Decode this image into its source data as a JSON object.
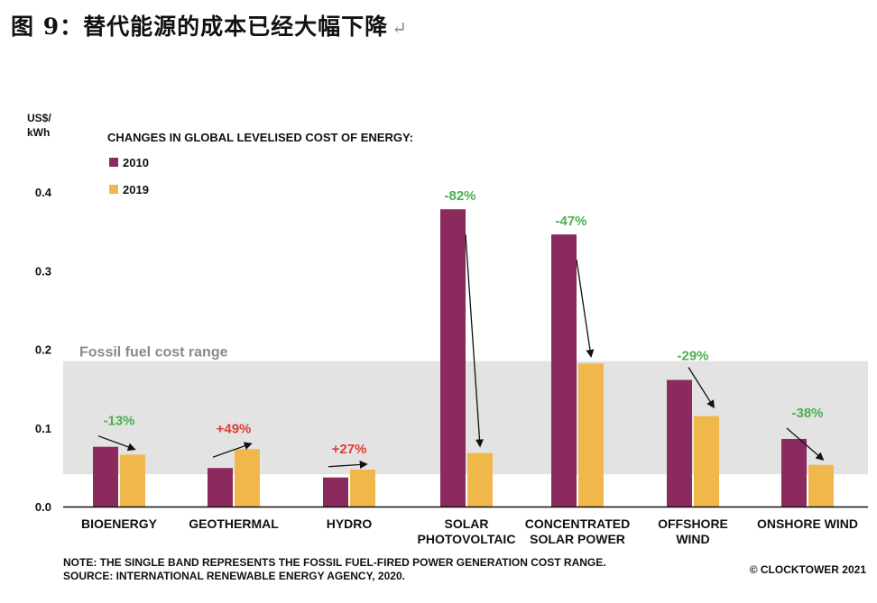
{
  "figure_title": "图 9：替代能源的成本已经大幅下降",
  "return_mark": "↵",
  "chart_data": {
    "type": "bar",
    "title": "CHANGES IN GLOBAL LEVELISED COST OF ENERGY:",
    "ylabel": "US$/ kWh",
    "ylabel_lines": [
      "US$/",
      "kWh"
    ],
    "ylim": [
      0,
      0.4
    ],
    "yticks": [
      "0.0",
      "0.1",
      "0.2",
      "0.3",
      "0.4"
    ],
    "categories": [
      [
        "BIOENERGY"
      ],
      [
        "GEOTHERMAL"
      ],
      [
        "HYDRO"
      ],
      [
        "SOLAR",
        "PHOTOVOLTAIC"
      ],
      [
        "CONCENTRATED",
        "SOLAR POWER"
      ],
      [
        "OFFSHORE",
        "WIND"
      ],
      [
        "ONSHORE WIND"
      ]
    ],
    "series": [
      {
        "name": "2010",
        "color": "#8b2a5c",
        "values": [
          0.076,
          0.049,
          0.037,
          0.378,
          0.346,
          0.161,
          0.086
        ]
      },
      {
        "name": "2019",
        "color": "#f0b84a",
        "values": [
          0.066,
          0.073,
          0.047,
          0.068,
          0.182,
          0.115,
          0.053
        ]
      }
    ],
    "changes": [
      "-13%",
      "+49%",
      "+27%",
      "-82%",
      "-47%",
      "-29%",
      "-38%"
    ],
    "change_colors": {
      "decrease": "#4caf50",
      "increase": "#e03c31"
    },
    "band": {
      "label": "Fossil fuel cost range",
      "from": 0.041,
      "to": 0.185,
      "color": "#e3e3e3"
    },
    "legend_position": "top-left"
  },
  "notes": [
    "NOTE: THE SINGLE BAND REPRESENTS THE FOSSIL FUEL-FIRED POWER GENERATION COST RANGE.",
    "SOURCE: INTERNATIONAL RENEWABLE ENERGY AGENCY, 2020."
  ],
  "copyright": "© CLOCKTOWER 2021"
}
